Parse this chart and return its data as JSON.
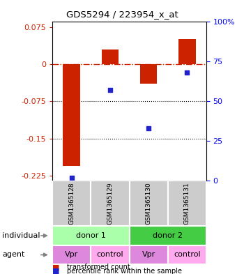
{
  "title": "GDS5294 / 223954_x_at",
  "bar_values": [
    -0.205,
    0.03,
    -0.04,
    0.05
  ],
  "percentile_values": [
    2,
    57,
    33,
    68
  ],
  "sample_labels": [
    "GSM1365128",
    "GSM1365129",
    "GSM1365130",
    "GSM1365131"
  ],
  "individual_labels": [
    "donor 1",
    "donor 2"
  ],
  "agent_labels": [
    "Vpr",
    "control",
    "Vpr",
    "control"
  ],
  "bar_color": "#cc2200",
  "dot_color": "#2222cc",
  "ylim_left": [
    -0.235,
    0.085
  ],
  "ylim_right": [
    0,
    100
  ],
  "yticks_left": [
    0.075,
    0,
    -0.075,
    -0.15,
    -0.225
  ],
  "yticks_right": [
    100,
    75,
    50,
    25,
    0
  ],
  "hline_y": 0,
  "dotted_lines": [
    -0.075,
    -0.15
  ],
  "legend_bar_label": "transformed count",
  "legend_dot_label": "percentile rank within the sample",
  "donor1_color": "#aaffaa",
  "donor2_color": "#44cc44",
  "vpr_color": "#dd88dd",
  "control_color": "#ffaaee",
  "sample_bg_color": "#cccccc",
  "individual_label": "individual",
  "agent_label": "agent",
  "bar_width": 0.45
}
